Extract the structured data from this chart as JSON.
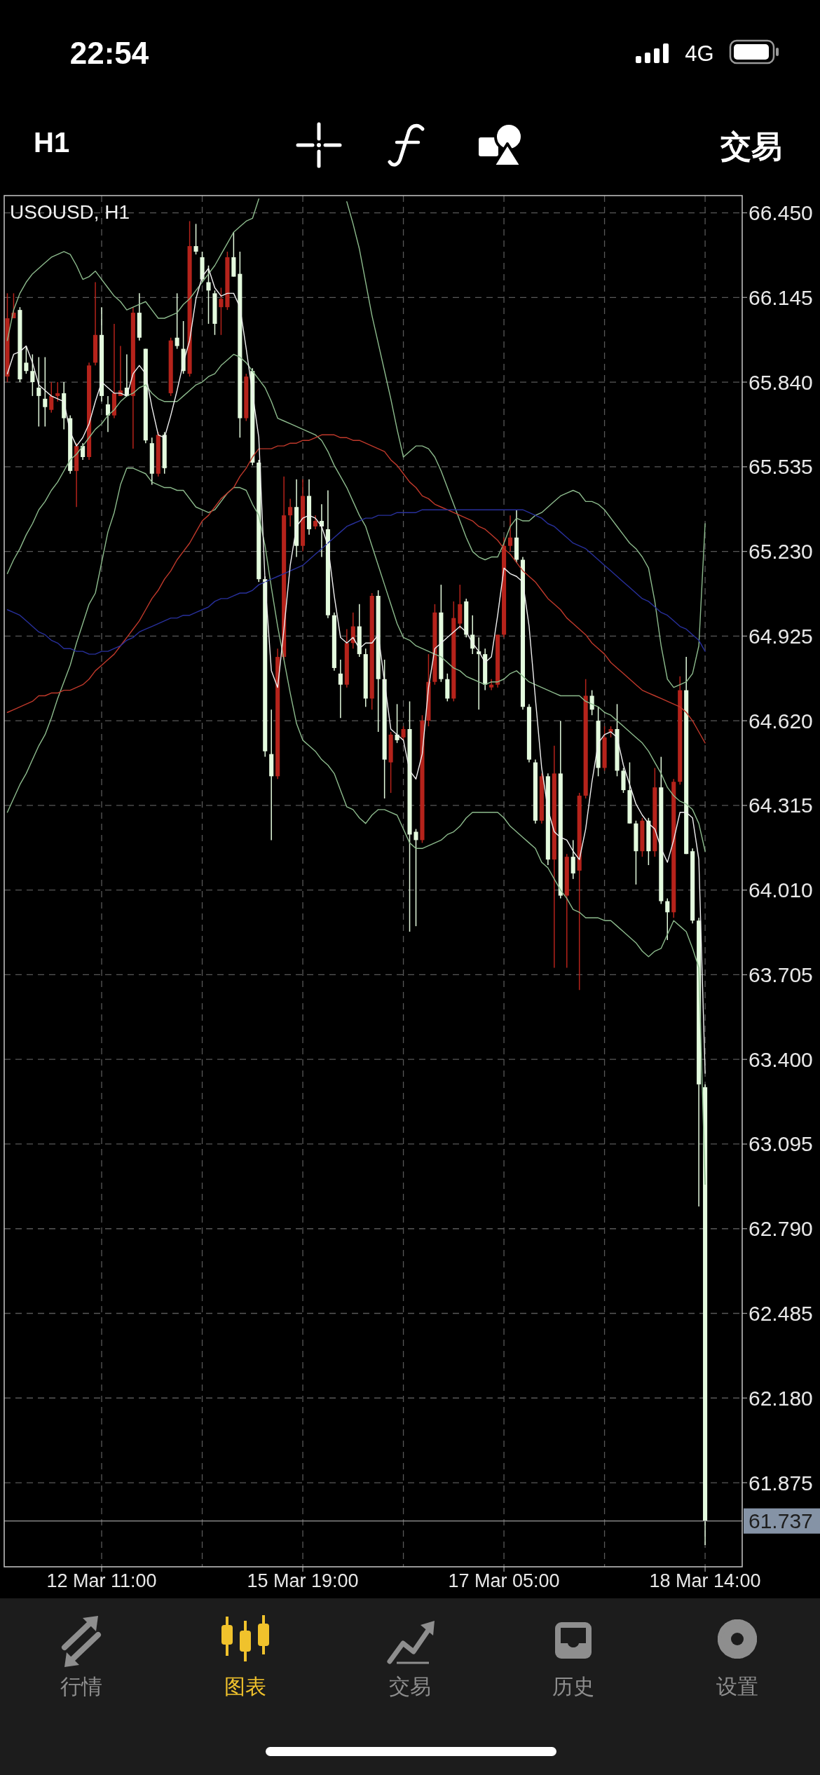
{
  "chart_data": {
    "type": "candlestick",
    "title": "USOUSD, H1",
    "annotations": [
      "22:54",
      "4G",
      "H1",
      "交易",
      "行情",
      "图表",
      "交易",
      "历史",
      "设置"
    ],
    "categories": [
      null,
      null,
      null,
      null,
      null,
      null,
      null,
      null,
      null,
      null,
      null,
      null,
      null,
      null,
      null,
      "12 Mar 11:00",
      null,
      null,
      null,
      null,
      null,
      null,
      null,
      null,
      null,
      null,
      null,
      null,
      null,
      null,
      null,
      null,
      null,
      null,
      null,
      null,
      null,
      null,
      null,
      null,
      null,
      null,
      null,
      null,
      null,
      null,
      null,
      "15 Mar 19:00",
      null,
      null,
      null,
      null,
      null,
      null,
      null,
      null,
      null,
      null,
      null,
      null,
      null,
      null,
      null,
      null,
      null,
      null,
      null,
      null,
      null,
      null,
      null,
      null,
      null,
      null,
      null,
      null,
      null,
      null,
      null,
      "17 Mar 05:00",
      null,
      null,
      null,
      null,
      null,
      null,
      null,
      null,
      null,
      null,
      null,
      null,
      null,
      null,
      null,
      null,
      null,
      null,
      null,
      null,
      null,
      null,
      null,
      null,
      null,
      null,
      null,
      null,
      null,
      null,
      null,
      "18 Mar 14:00"
    ],
    "ohlc": [
      [
        65.86,
        66.16,
        65.84,
        66.07
      ],
      [
        66.07,
        66.16,
        66.07,
        66.09
      ],
      [
        66.1,
        66.11,
        65.84,
        65.85
      ],
      [
        65.91,
        65.97,
        65.87,
        65.88
      ],
      [
        65.88,
        65.94,
        65.79,
        65.84
      ],
      [
        65.82,
        65.93,
        65.68,
        65.79
      ],
      [
        65.78,
        65.93,
        65.68,
        65.75
      ],
      [
        65.74,
        65.84,
        65.73,
        65.79
      ],
      [
        65.79,
        65.84,
        65.77,
        65.8
      ],
      [
        65.8,
        65.84,
        65.67,
        65.71
      ],
      [
        65.71,
        65.72,
        65.51,
        65.52
      ],
      [
        65.52,
        65.62,
        65.39,
        65.61
      ],
      [
        65.61,
        65.62,
        65.56,
        65.57
      ],
      [
        65.57,
        65.91,
        65.56,
        65.9
      ],
      [
        65.91,
        66.2,
        65.9,
        66.01
      ],
      [
        66.01,
        66.11,
        65.77,
        65.79
      ],
      [
        65.76,
        65.79,
        65.66,
        65.72
      ],
      [
        65.72,
        66.05,
        65.71,
        65.8
      ],
      [
        65.79,
        65.97,
        65.79,
        65.81
      ],
      [
        65.82,
        65.94,
        65.79,
        65.79
      ],
      [
        65.79,
        66.11,
        65.6,
        66.09
      ],
      [
        66.09,
        66.16,
        65.99,
        66.0
      ],
      [
        65.96,
        65.96,
        65.62,
        65.63
      ],
      [
        65.62,
        65.64,
        65.47,
        65.51
      ],
      [
        65.51,
        65.66,
        65.5,
        65.65
      ],
      [
        65.65,
        65.66,
        65.51,
        65.53
      ],
      [
        65.8,
        66.0,
        65.79,
        65.99
      ],
      [
        66.0,
        66.16,
        65.96,
        65.97
      ],
      [
        65.96,
        66.06,
        65.87,
        65.88
      ],
      [
        65.87,
        66.42,
        65.86,
        66.33
      ],
      [
        66.33,
        66.41,
        66.3,
        66.31
      ],
      [
        66.29,
        66.31,
        66.2,
        66.21
      ],
      [
        66.2,
        66.26,
        66.05,
        66.17
      ],
      [
        66.16,
        66.17,
        66.01,
        66.05
      ],
      [
        66.11,
        66.18,
        66.01,
        66.14
      ],
      [
        66.11,
        66.31,
        66.1,
        66.29
      ],
      [
        66.29,
        66.38,
        66.22,
        66.22
      ],
      [
        66.23,
        66.31,
        65.64,
        65.71
      ],
      [
        65.71,
        65.87,
        65.7,
        65.86
      ],
      [
        65.88,
        65.89,
        65.54,
        65.55
      ],
      [
        65.55,
        65.56,
        65.12,
        65.13
      ],
      [
        65.13,
        65.14,
        64.49,
        64.51
      ],
      [
        64.5,
        64.66,
        64.19,
        64.42
      ],
      [
        64.42,
        64.88,
        64.41,
        64.85
      ],
      [
        64.85,
        65.5,
        64.84,
        65.36
      ],
      [
        65.36,
        65.42,
        65.32,
        65.39
      ],
      [
        65.39,
        65.49,
        65.21,
        65.25
      ],
      [
        65.25,
        65.49,
        65.23,
        65.43
      ],
      [
        65.43,
        65.49,
        65.29,
        65.31
      ],
      [
        65.32,
        65.36,
        65.31,
        65.34
      ],
      [
        65.34,
        65.4,
        65.21,
        65.32
      ],
      [
        65.31,
        65.45,
        64.99,
        65.0
      ],
      [
        65.0,
        65.01,
        64.8,
        64.81
      ],
      [
        64.79,
        64.84,
        64.63,
        64.75
      ],
      [
        64.75,
        64.95,
        64.74,
        64.9
      ],
      [
        64.9,
        65.01,
        64.88,
        64.96
      ],
      [
        64.96,
        65.04,
        64.85,
        64.86
      ],
      [
        64.86,
        64.88,
        64.67,
        64.7
      ],
      [
        64.7,
        65.08,
        64.66,
        65.07
      ],
      [
        65.07,
        65.09,
        64.58,
        64.77
      ],
      [
        64.77,
        64.84,
        64.34,
        64.48
      ],
      [
        64.47,
        64.58,
        64.36,
        64.57
      ],
      [
        64.57,
        64.68,
        64.54,
        64.55
      ],
      [
        64.56,
        64.6,
        64.55,
        64.59
      ],
      [
        64.59,
        64.69,
        63.86,
        64.21
      ],
      [
        64.22,
        64.23,
        63.88,
        64.19
      ],
      [
        64.19,
        64.64,
        64.18,
        64.62
      ],
      [
        64.62,
        64.86,
        64.6,
        64.76
      ],
      [
        64.76,
        65.04,
        64.75,
        65.01
      ],
      [
        65.01,
        65.11,
        64.76,
        64.77
      ],
      [
        64.77,
        64.79,
        64.69,
        64.7
      ],
      [
        64.7,
        65.05,
        64.69,
        64.99
      ],
      [
        64.97,
        65.11,
        64.95,
        65.04
      ],
      [
        65.05,
        65.06,
        64.92,
        64.93
      ],
      [
        64.93,
        65.0,
        64.86,
        64.88
      ],
      [
        64.87,
        64.92,
        64.66,
        64.86
      ],
      [
        64.86,
        64.88,
        64.73,
        64.75
      ],
      [
        64.74,
        64.77,
        64.73,
        64.75
      ],
      [
        64.75,
        64.93,
        64.74,
        64.93
      ],
      [
        64.93,
        65.28,
        64.92,
        65.25
      ],
      [
        65.25,
        65.36,
        65.23,
        65.28
      ],
      [
        65.28,
        65.38,
        65.19,
        65.2
      ],
      [
        65.2,
        65.21,
        64.66,
        64.67
      ],
      [
        64.67,
        64.68,
        64.47,
        64.48
      ],
      [
        64.47,
        64.48,
        64.25,
        64.26
      ],
      [
        64.26,
        64.43,
        64.25,
        64.42
      ],
      [
        64.42,
        64.43,
        64.1,
        64.12
      ],
      [
        64.12,
        64.53,
        63.73,
        64.43
      ],
      [
        64.43,
        64.62,
        63.98,
        63.99
      ],
      [
        63.99,
        64.14,
        63.73,
        64.13
      ],
      [
        64.13,
        64.19,
        64.05,
        64.07
      ],
      [
        64.08,
        64.36,
        63.65,
        64.35
      ],
      [
        64.35,
        64.77,
        64.34,
        64.71
      ],
      [
        64.71,
        64.73,
        64.64,
        64.66
      ],
      [
        64.62,
        64.67,
        64.42,
        64.45
      ],
      [
        64.45,
        64.6,
        64.44,
        64.56
      ],
      [
        64.58,
        64.6,
        64.56,
        64.59
      ],
      [
        64.59,
        64.68,
        64.42,
        64.44
      ],
      [
        64.44,
        64.45,
        64.36,
        64.37
      ],
      [
        64.37,
        64.47,
        64.25,
        64.25
      ],
      [
        64.25,
        64.26,
        64.03,
        64.15
      ],
      [
        64.15,
        64.27,
        64.13,
        64.26
      ],
      [
        64.26,
        64.27,
        64.1,
        64.15
      ],
      [
        64.15,
        64.45,
        64.13,
        64.38
      ],
      [
        64.38,
        64.49,
        63.96,
        63.97
      ],
      [
        63.97,
        63.98,
        63.83,
        63.93
      ],
      [
        63.93,
        64.41,
        63.91,
        64.4
      ],
      [
        64.4,
        64.78,
        64.39,
        64.73
      ],
      [
        64.73,
        64.85,
        64.14,
        64.14
      ],
      [
        64.15,
        64.16,
        63.89,
        63.9
      ],
      [
        63.9,
        63.91,
        62.87,
        63.31
      ],
      [
        63.3,
        63.31,
        61.65,
        61.737
      ]
    ],
    "colors": [
      "#b5231b",
      "#b5231b",
      "#e4fbde",
      "#e4fbde",
      "#e4fbde",
      "#e4fbde",
      "#e4fbde",
      "#b5231b",
      "#b5231b",
      "#e4fbde",
      "#e4fbde",
      "#b5231b",
      "#e4fbde",
      "#b5231b",
      "#b5231b",
      "#e4fbde",
      "#e4fbde",
      "#b5231b",
      "#b5231b",
      "#e4fbde",
      "#b5231b",
      "#e4fbde",
      "#e4fbde",
      "#e4fbde",
      "#b5231b",
      "#e4fbde",
      "#b5231b",
      "#e4fbde",
      "#e4fbde",
      "#b5231b",
      "#e4fbde",
      "#e4fbde",
      "#e4fbde",
      "#e4fbde",
      "#b5231b",
      "#b5231b",
      "#e4fbde",
      "#e4fbde",
      "#b5231b",
      "#e4fbde",
      "#e4fbde",
      "#e4fbde",
      "#e4fbde",
      "#b5231b",
      "#b5231b",
      "#b5231b",
      "#e4fbde",
      "#b5231b",
      "#e4fbde",
      "#b5231b",
      "#e4fbde",
      "#e4fbde",
      "#e4fbde",
      "#e4fbde",
      "#b5231b",
      "#b5231b",
      "#e4fbde",
      "#e4fbde",
      "#b5231b",
      "#e4fbde",
      "#e4fbde",
      "#b5231b",
      "#e4fbde",
      "#b5231b",
      "#e4fbde",
      "#e4fbde",
      "#b5231b",
      "#b5231b",
      "#b5231b",
      "#e4fbde",
      "#e4fbde",
      "#b5231b",
      "#b5231b",
      "#e4fbde",
      "#e4fbde",
      "#e4fbde",
      "#e4fbde",
      "#b5231b",
      "#b5231b",
      "#b5231b",
      "#b5231b",
      "#e4fbde",
      "#e4fbde",
      "#e4fbde",
      "#e4fbde",
      "#b5231b",
      "#e4fbde",
      "#b5231b",
      "#e4fbde",
      "#b5231b",
      "#e4fbde",
      "#b5231b",
      "#b5231b",
      "#e4fbde",
      "#e4fbde",
      "#b5231b",
      "#b5231b",
      "#e4fbde",
      "#e4fbde",
      "#e4fbde",
      "#e4fbde",
      "#b5231b",
      "#e4fbde",
      "#b5231b",
      "#e4fbde",
      "#e4fbde",
      "#b5231b",
      "#b5231b",
      "#e4fbde",
      "#e4fbde",
      "#e4fbde",
      "#e4fbde"
    ],
    "series": [
      {
        "type": "line",
        "color": "#8dbb8d",
        "values": [
          65.99,
          66.1,
          66.16,
          66.2,
          66.23,
          66.25,
          66.27,
          66.29,
          66.3,
          66.31,
          66.3,
          66.26,
          66.21,
          66.22,
          66.24,
          66.21,
          66.18,
          66.15,
          66.13,
          66.1,
          66.11,
          66.12,
          66.13,
          66.1,
          66.07,
          66.07,
          66.08,
          66.09,
          66.12,
          66.14,
          66.17,
          66.2,
          66.23,
          66.26,
          66.3,
          66.34,
          66.38,
          66.4,
          66.42,
          66.43,
          66.5,
          null,
          null,
          null,
          null,
          null,
          null,
          null,
          null,
          null,
          null,
          null,
          null,
          null,
          66.49,
          66.41,
          66.32,
          66.2,
          66.08,
          65.98,
          65.88,
          65.78,
          65.67,
          65.57,
          65.59,
          65.61,
          65.61,
          65.6,
          65.57,
          65.52,
          65.46,
          65.4,
          65.34,
          65.28,
          65.23,
          65.21,
          65.2,
          65.21,
          65.21,
          65.26,
          65.32,
          65.35,
          65.34,
          65.34,
          65.36,
          65.37,
          65.39,
          65.41,
          65.43,
          65.44,
          65.45,
          65.44,
          65.41,
          65.41,
          65.4,
          65.38,
          65.35,
          65.32,
          65.29,
          65.26,
          65.24,
          65.21,
          65.17,
          65.05,
          64.89,
          64.77,
          64.74,
          64.75,
          64.76,
          64.79,
          64.89,
          65.33
        ]
      },
      {
        "type": "line",
        "color": "#8dbb8d",
        "values": [
          65.15,
          65.2,
          65.24,
          65.29,
          65.33,
          65.38,
          65.41,
          65.45,
          65.48,
          65.52,
          65.56,
          65.58,
          65.61,
          65.64,
          65.67,
          65.69,
          65.72,
          65.74,
          65.77,
          65.79,
          65.8,
          65.82,
          65.83,
          65.8,
          65.78,
          65.77,
          65.77,
          65.77,
          65.79,
          65.81,
          65.83,
          65.84,
          65.86,
          65.87,
          65.9,
          65.92,
          65.94,
          65.93,
          65.91,
          65.88,
          65.85,
          65.82,
          65.77,
          65.71,
          65.7,
          65.69,
          65.68,
          65.67,
          65.66,
          65.65,
          65.63,
          65.59,
          65.54,
          65.5,
          65.46,
          65.41,
          65.36,
          65.32,
          65.25,
          65.18,
          65.11,
          65.04,
          64.97,
          64.92,
          64.91,
          64.89,
          64.88,
          64.87,
          64.86,
          64.85,
          64.83,
          64.81,
          64.8,
          64.78,
          64.77,
          64.76,
          64.75,
          64.76,
          64.76,
          64.77,
          64.79,
          64.8,
          64.78,
          64.76,
          64.75,
          64.74,
          64.73,
          64.72,
          64.71,
          64.71,
          64.71,
          64.71,
          64.69,
          64.68,
          64.67,
          64.65,
          64.64,
          64.62,
          64.6,
          64.58,
          64.56,
          64.54,
          64.51,
          64.47,
          64.43,
          64.38,
          64.35,
          64.33,
          64.32,
          64.3,
          64.25,
          64.15
        ]
      },
      {
        "type": "line",
        "color": "#8dbb8d",
        "values": [
          64.29,
          64.34,
          64.39,
          64.43,
          64.48,
          64.53,
          64.57,
          64.63,
          64.7,
          64.76,
          64.82,
          64.9,
          64.97,
          65.04,
          65.08,
          65.19,
          65.3,
          65.37,
          65.47,
          65.53,
          65.53,
          65.52,
          65.51,
          65.48,
          65.47,
          65.46,
          65.46,
          65.45,
          65.45,
          65.42,
          65.39,
          65.38,
          65.37,
          65.38,
          65.41,
          65.44,
          65.46,
          65.46,
          65.45,
          65.4,
          65.36,
          65.25,
          65.1,
          64.96,
          64.84,
          64.72,
          64.61,
          64.55,
          64.53,
          64.51,
          64.48,
          64.46,
          64.43,
          64.37,
          64.31,
          64.3,
          64.27,
          64.25,
          64.28,
          64.3,
          64.3,
          64.29,
          64.28,
          64.23,
          64.18,
          64.16,
          64.16,
          64.17,
          64.18,
          64.19,
          64.21,
          64.22,
          64.24,
          64.27,
          64.29,
          64.29,
          64.29,
          64.29,
          64.29,
          64.27,
          64.24,
          64.22,
          64.2,
          64.18,
          64.16,
          64.11,
          64.09,
          64.05,
          64.01,
          63.98,
          63.94,
          63.93,
          63.91,
          63.91,
          63.91,
          63.9,
          63.9,
          63.88,
          63.86,
          63.84,
          63.82,
          63.79,
          63.77,
          63.79,
          63.8,
          63.85,
          63.9,
          63.88,
          63.86,
          63.8,
          63.73,
          62.95
        ]
      },
      {
        "type": "line",
        "color": "#c0392b",
        "values": [
          64.65,
          64.66,
          64.67,
          64.68,
          64.69,
          64.71,
          64.71,
          64.72,
          64.72,
          64.73,
          64.73,
          64.74,
          64.75,
          64.77,
          64.8,
          64.82,
          64.84,
          64.86,
          64.89,
          64.92,
          64.95,
          64.98,
          65.02,
          65.06,
          65.09,
          65.13,
          65.16,
          65.2,
          65.23,
          65.26,
          65.3,
          65.34,
          65.36,
          65.39,
          65.42,
          65.44,
          65.46,
          65.5,
          65.53,
          65.57,
          65.6,
          65.6,
          65.6,
          65.61,
          65.61,
          65.62,
          65.62,
          65.63,
          65.63,
          65.64,
          65.65,
          65.65,
          65.65,
          65.64,
          65.64,
          65.63,
          65.63,
          65.62,
          65.61,
          65.6,
          65.59,
          65.56,
          65.54,
          65.51,
          65.48,
          65.46,
          65.43,
          65.42,
          65.4,
          65.39,
          65.38,
          65.37,
          65.36,
          65.35,
          65.34,
          65.32,
          65.31,
          65.29,
          65.27,
          65.24,
          65.22,
          65.19,
          65.16,
          65.14,
          65.12,
          65.09,
          65.06,
          65.04,
          65.02,
          64.99,
          64.97,
          64.95,
          64.93,
          64.9,
          64.88,
          64.86,
          64.83,
          64.81,
          64.79,
          64.77,
          64.75,
          64.73,
          64.72,
          64.71,
          64.7,
          64.69,
          64.68,
          64.67,
          64.65,
          64.62,
          64.58,
          64.54
        ]
      },
      {
        "type": "line",
        "color": "#28309c",
        "values": [
          65.02,
          65.01,
          65.0,
          64.98,
          64.96,
          64.94,
          64.93,
          64.91,
          64.9,
          64.88,
          64.88,
          64.87,
          64.87,
          64.86,
          64.86,
          64.87,
          64.87,
          64.88,
          64.89,
          64.91,
          64.92,
          64.94,
          64.95,
          64.96,
          64.97,
          64.98,
          64.99,
          64.99,
          65.0,
          65.0,
          65.01,
          65.02,
          65.03,
          65.05,
          65.06,
          65.06,
          65.07,
          65.08,
          65.08,
          65.09,
          65.11,
          65.12,
          65.13,
          65.14,
          65.15,
          65.16,
          65.17,
          65.18,
          65.2,
          65.22,
          65.24,
          65.26,
          65.28,
          65.3,
          65.32,
          65.33,
          65.34,
          65.35,
          65.35,
          65.36,
          65.36,
          65.36,
          65.37,
          65.37,
          65.37,
          65.37,
          65.38,
          65.38,
          65.38,
          65.38,
          65.38,
          65.38,
          65.38,
          65.38,
          65.38,
          65.38,
          65.38,
          65.38,
          65.38,
          65.38,
          65.38,
          65.38,
          65.38,
          65.37,
          65.36,
          65.35,
          65.33,
          65.32,
          65.3,
          65.28,
          65.26,
          65.25,
          65.24,
          65.22,
          65.2,
          65.18,
          65.16,
          65.14,
          65.12,
          65.1,
          65.08,
          65.06,
          65.05,
          65.03,
          65.01,
          65.0,
          64.98,
          64.96,
          64.95,
          64.93,
          64.91,
          64.87
        ]
      },
      {
        "type": "line",
        "color": "#f0f0f0",
        "values": [
          65.87,
          65.94,
          65.95,
          65.97,
          65.91,
          65.83,
          65.81,
          65.79,
          65.78,
          65.77,
          65.66,
          65.61,
          65.64,
          65.69,
          65.77,
          65.84,
          65.82,
          65.8,
          65.8,
          65.79,
          65.87,
          65.9,
          65.87,
          65.75,
          65.65,
          65.64,
          65.72,
          65.81,
          65.91,
          65.99,
          66.14,
          66.22,
          66.25,
          66.18,
          66.15,
          66.16,
          66.16,
          66.11,
          65.96,
          65.8,
          65.64,
          65.12,
          64.8,
          64.74,
          64.95,
          65.18,
          65.32,
          65.35,
          65.36,
          65.35,
          65.32,
          65.25,
          65.07,
          64.92,
          64.9,
          64.92,
          64.88,
          64.9,
          64.9,
          64.93,
          64.76,
          64.59,
          64.57,
          64.55,
          64.44,
          64.41,
          64.5,
          64.74,
          64.88,
          64.9,
          64.92,
          64.94,
          64.96,
          64.94,
          64.9,
          64.87,
          64.83,
          64.85,
          65.0,
          65.17,
          65.15,
          65.14,
          65.12,
          64.96,
          64.7,
          64.45,
          64.3,
          64.22,
          64.2,
          64.19,
          64.15,
          64.12,
          64.23,
          64.4,
          64.54,
          64.57,
          64.58,
          64.56,
          64.46,
          64.39,
          64.32,
          64.28,
          64.25,
          64.23,
          64.16,
          64.11,
          64.19,
          64.29,
          64.29,
          64.27,
          64.12,
          63.35
        ]
      }
    ],
    "ylim": [
      61.572,
      66.512
    ],
    "yticks": [
      {
        "value": 66.45,
        "label": "66.450"
      },
      {
        "value": 66.145,
        "label": "66.145"
      },
      {
        "value": 65.84,
        "label": "65.840"
      },
      {
        "value": 65.535,
        "label": "65.535"
      },
      {
        "value": 65.23,
        "label": "65.230"
      },
      {
        "value": 64.925,
        "label": "64.925"
      },
      {
        "value": 64.62,
        "label": "64.620"
      },
      {
        "value": 64.315,
        "label": "64.315"
      },
      {
        "value": 64.01,
        "label": "64.010"
      },
      {
        "value": 63.705,
        "label": "63.705"
      },
      {
        "value": 63.4,
        "label": "63.400"
      },
      {
        "value": 63.095,
        "label": "63.095"
      },
      {
        "value": 62.79,
        "label": "62.790"
      },
      {
        "value": 62.485,
        "label": "62.485"
      },
      {
        "value": 62.18,
        "label": "62.180"
      },
      {
        "value": 61.875,
        "label": "61.875"
      }
    ],
    "ref_lines": [
      {
        "axis": "y",
        "value": 61.737,
        "label": "61.737",
        "color": "#9a9a9a"
      }
    ],
    "grid": true
  }
}
